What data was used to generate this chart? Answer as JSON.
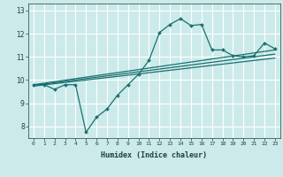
{
  "xlabel": "Humidex (Indice chaleur)",
  "bg_color": "#cceaea",
  "grid_color": "#ffffff",
  "line_color": "#1a7070",
  "xlim": [
    -0.5,
    23.5
  ],
  "ylim": [
    7.5,
    13.3
  ],
  "xticks": [
    0,
    1,
    2,
    3,
    4,
    5,
    6,
    7,
    8,
    9,
    10,
    11,
    12,
    13,
    14,
    15,
    16,
    17,
    18,
    19,
    20,
    21,
    22,
    23
  ],
  "yticks": [
    8,
    9,
    10,
    11,
    12,
    13
  ],
  "main_x": [
    0,
    1,
    2,
    3,
    4,
    5,
    6,
    7,
    8,
    9,
    10,
    11,
    12,
    13,
    14,
    15,
    16,
    17,
    18,
    19,
    20,
    21,
    22,
    23
  ],
  "main_y": [
    9.8,
    9.8,
    9.6,
    9.8,
    9.8,
    7.75,
    8.4,
    8.75,
    9.35,
    9.8,
    10.25,
    10.85,
    12.05,
    12.4,
    12.65,
    12.35,
    12.4,
    11.3,
    11.3,
    11.05,
    11.0,
    11.05,
    11.6,
    11.35
  ],
  "trend1_x": [
    0,
    23
  ],
  "trend1_y": [
    9.8,
    11.3
  ],
  "trend2_x": [
    0,
    23
  ],
  "trend2_y": [
    9.77,
    11.12
  ],
  "trend3_x": [
    0,
    23
  ],
  "trend3_y": [
    9.74,
    10.95
  ]
}
